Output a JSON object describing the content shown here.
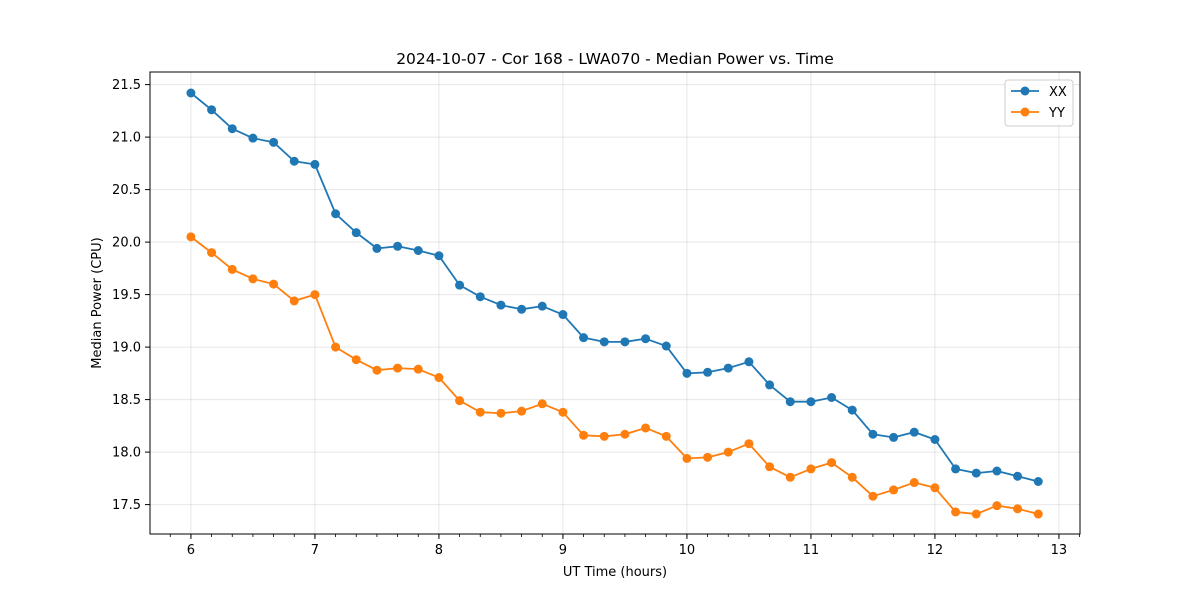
{
  "chart_data": {
    "type": "line",
    "title": "2024-10-07 - Cor 168 - LWA070 - Median Power vs. Time",
    "xlabel": "UT Time (hours)",
    "ylabel": "Median Power (CPU)",
    "xlim": [
      5.67,
      13.17
    ],
    "ylim": [
      17.22,
      21.62
    ],
    "xticks": [
      6,
      7,
      8,
      9,
      10,
      11,
      12,
      13
    ],
    "xtick_labels": [
      "6",
      "7",
      "8",
      "9",
      "10",
      "11",
      "12",
      "13"
    ],
    "yticks": [
      17.5,
      18.0,
      18.5,
      19.0,
      19.5,
      20.0,
      20.5,
      21.0,
      21.5
    ],
    "ytick_labels": [
      "17.5",
      "18.0",
      "18.5",
      "19.0",
      "19.5",
      "20.0",
      "20.5",
      "21.0",
      "21.5"
    ],
    "grid": true,
    "legend_position": "top-right",
    "x": [
      6.0,
      6.1667,
      6.3333,
      6.5,
      6.6667,
      6.8333,
      7.0,
      7.1667,
      7.3333,
      7.5,
      7.6667,
      7.8333,
      8.0,
      8.1667,
      8.3333,
      8.5,
      8.6667,
      8.8333,
      9.0,
      9.1667,
      9.3333,
      9.5,
      9.6667,
      9.8333,
      10.0,
      10.1667,
      10.3333,
      10.5,
      10.6667,
      10.8333,
      11.0,
      11.1667,
      11.3333,
      11.5,
      11.6667,
      11.8333,
      12.0,
      12.1667,
      12.3333,
      12.5,
      12.6667,
      12.8333
    ],
    "series": [
      {
        "name": "XX",
        "color": "#1f77b4",
        "values": [
          21.42,
          21.26,
          21.08,
          20.99,
          20.95,
          20.77,
          20.74,
          20.27,
          20.09,
          19.94,
          19.96,
          19.92,
          19.87,
          19.59,
          19.48,
          19.4,
          19.36,
          19.39,
          19.31,
          19.09,
          19.05,
          19.05,
          19.08,
          19.01,
          18.75,
          18.76,
          18.8,
          18.86,
          18.64,
          18.48,
          18.48,
          18.52,
          18.4,
          18.17,
          18.14,
          18.19,
          18.12,
          17.84,
          17.8,
          17.82,
          17.77,
          17.72
        ]
      },
      {
        "name": "YY",
        "color": "#ff7f0e",
        "values": [
          20.05,
          19.9,
          19.74,
          19.65,
          19.6,
          19.44,
          19.5,
          19.0,
          18.88,
          18.78,
          18.8,
          18.79,
          18.71,
          18.49,
          18.38,
          18.37,
          18.39,
          18.46,
          18.38,
          18.16,
          18.15,
          18.17,
          18.23,
          18.15,
          17.94,
          17.95,
          18.0,
          18.08,
          17.86,
          17.76,
          17.84,
          17.9,
          17.76,
          17.58,
          17.64,
          17.71,
          17.66,
          17.43,
          17.41,
          17.49,
          17.46,
          17.41
        ]
      }
    ]
  }
}
